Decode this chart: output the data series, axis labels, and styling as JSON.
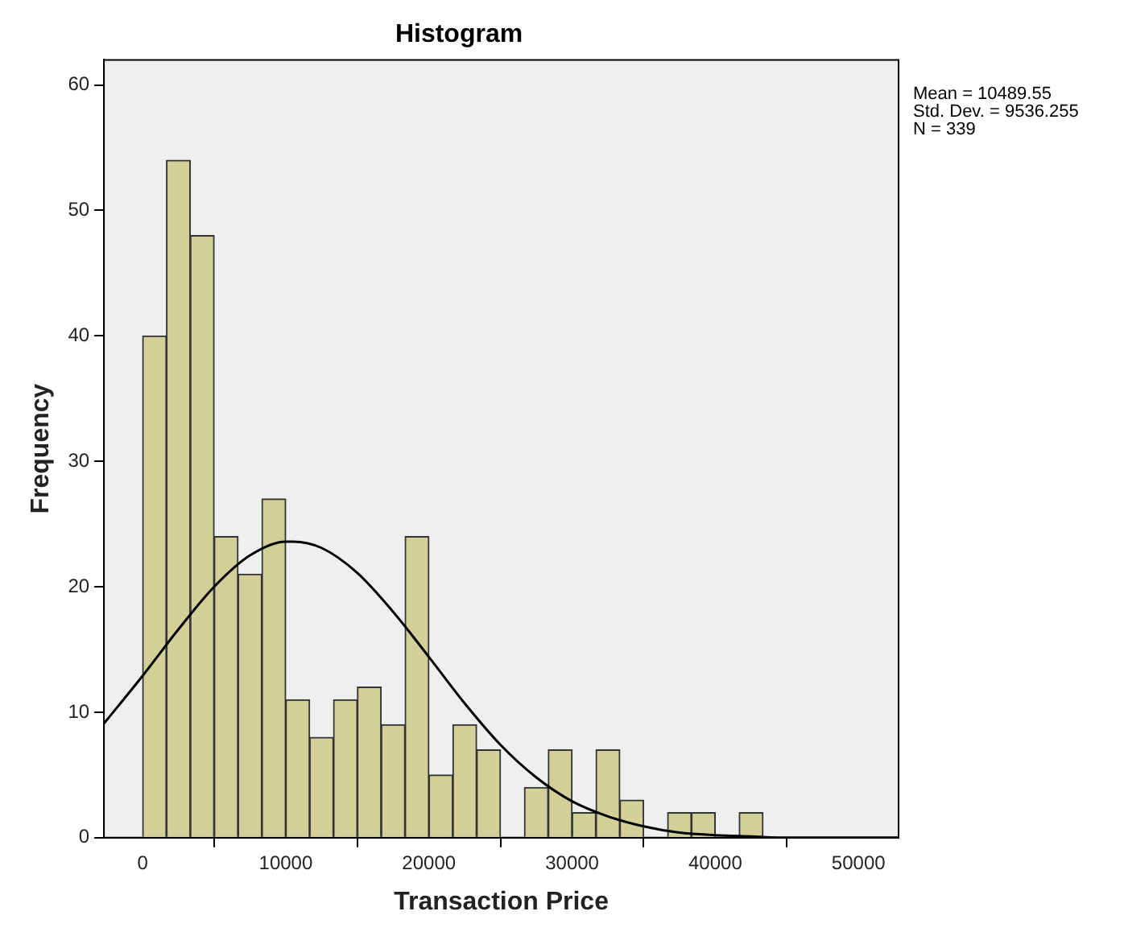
{
  "chart_data": {
    "type": "histogram",
    "title": "Histogram",
    "xlabel": "Transaction Price",
    "ylabel": "Frequency",
    "bins": [
      0,
      1666.67,
      3333.33,
      5000,
      6666.67,
      8333.33,
      10000,
      11666.67,
      13333.33,
      15000,
      16666.67,
      18333.33,
      20000,
      21666.67,
      23333.33,
      25000,
      26666.67,
      28333.33,
      30000,
      31666.67,
      33333.33,
      35000,
      36666.67,
      38333.33,
      40000,
      41666.67,
      43333.33
    ],
    "values": [
      40,
      54,
      48,
      24,
      21,
      27,
      11,
      8,
      11,
      12,
      9,
      24,
      5,
      9,
      7,
      0,
      4,
      7,
      2,
      7,
      3,
      0,
      2,
      2,
      0,
      2
    ],
    "color": "#d3cf98",
    "series": [
      {
        "type": "line",
        "color": "#000000",
        "x": [
          -2700,
          0,
          2500,
          5000,
          7500,
          10000,
          10489.55,
          12500,
          15000,
          17500,
          20000,
          22500,
          25000,
          27500,
          30000,
          32500,
          35000,
          37500,
          40000,
          42500,
          45000,
          47500,
          50000,
          52800
        ],
        "values": [
          9.1,
          12.9,
          16.6,
          20,
          22.5,
          23.6,
          23.6,
          23.1,
          21.1,
          18,
          14.4,
          10.7,
          7.4,
          4.8,
          2.9,
          1.7,
          0.9,
          0.4,
          0.2,
          0.1,
          0,
          0,
          0,
          0
        ]
      }
    ],
    "xlim": [
      -2700,
      52800
    ],
    "xticks": [
      0,
      10000,
      20000,
      30000,
      40000,
      50000
    ],
    "ylim": [
      0,
      62
    ],
    "yticks": [
      0,
      10,
      20,
      30,
      40,
      50,
      60
    ],
    "grid": false,
    "legend": false,
    "marker": "none",
    "annotations": [
      "Mean = 10489.55",
      "Std. Dev. = 9536.255",
      "N = 339"
    ]
  }
}
